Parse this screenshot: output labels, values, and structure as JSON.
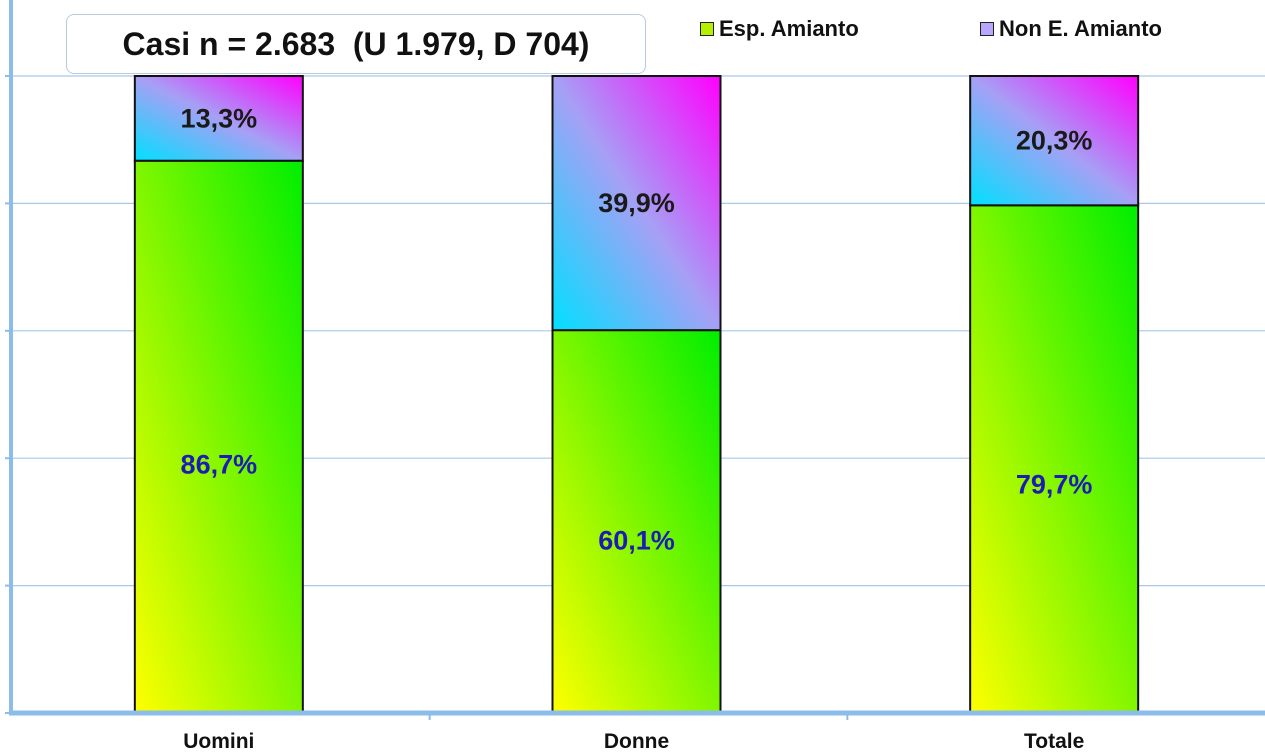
{
  "chart_data": {
    "type": "bar",
    "stacked": true,
    "title": "Casi n = 2.683  (U 1.979, D 704)",
    "categories": [
      "Uomini",
      "Donne",
      "Totale"
    ],
    "series": [
      {
        "name": "Esp. Amianto",
        "values": [
          86.7,
          60.1,
          79.7
        ],
        "labels": [
          "86,7%",
          "60,1%",
          "79,7%"
        ]
      },
      {
        "name": "Non E. Amianto",
        "values": [
          13.3,
          39.9,
          20.3
        ],
        "labels": [
          "13,3%",
          "39,9%",
          "20,3%"
        ]
      }
    ],
    "ylim": [
      0,
      100
    ],
    "grid": true,
    "legend_position": "top-right",
    "colors": {
      "esp_start": "#ffff00",
      "esp_end": "#00ee00",
      "non_start": "#00e0ff",
      "non_end": "#ff00ff",
      "gridline": "#a9c8e6",
      "axis": "#8cbcea"
    }
  }
}
